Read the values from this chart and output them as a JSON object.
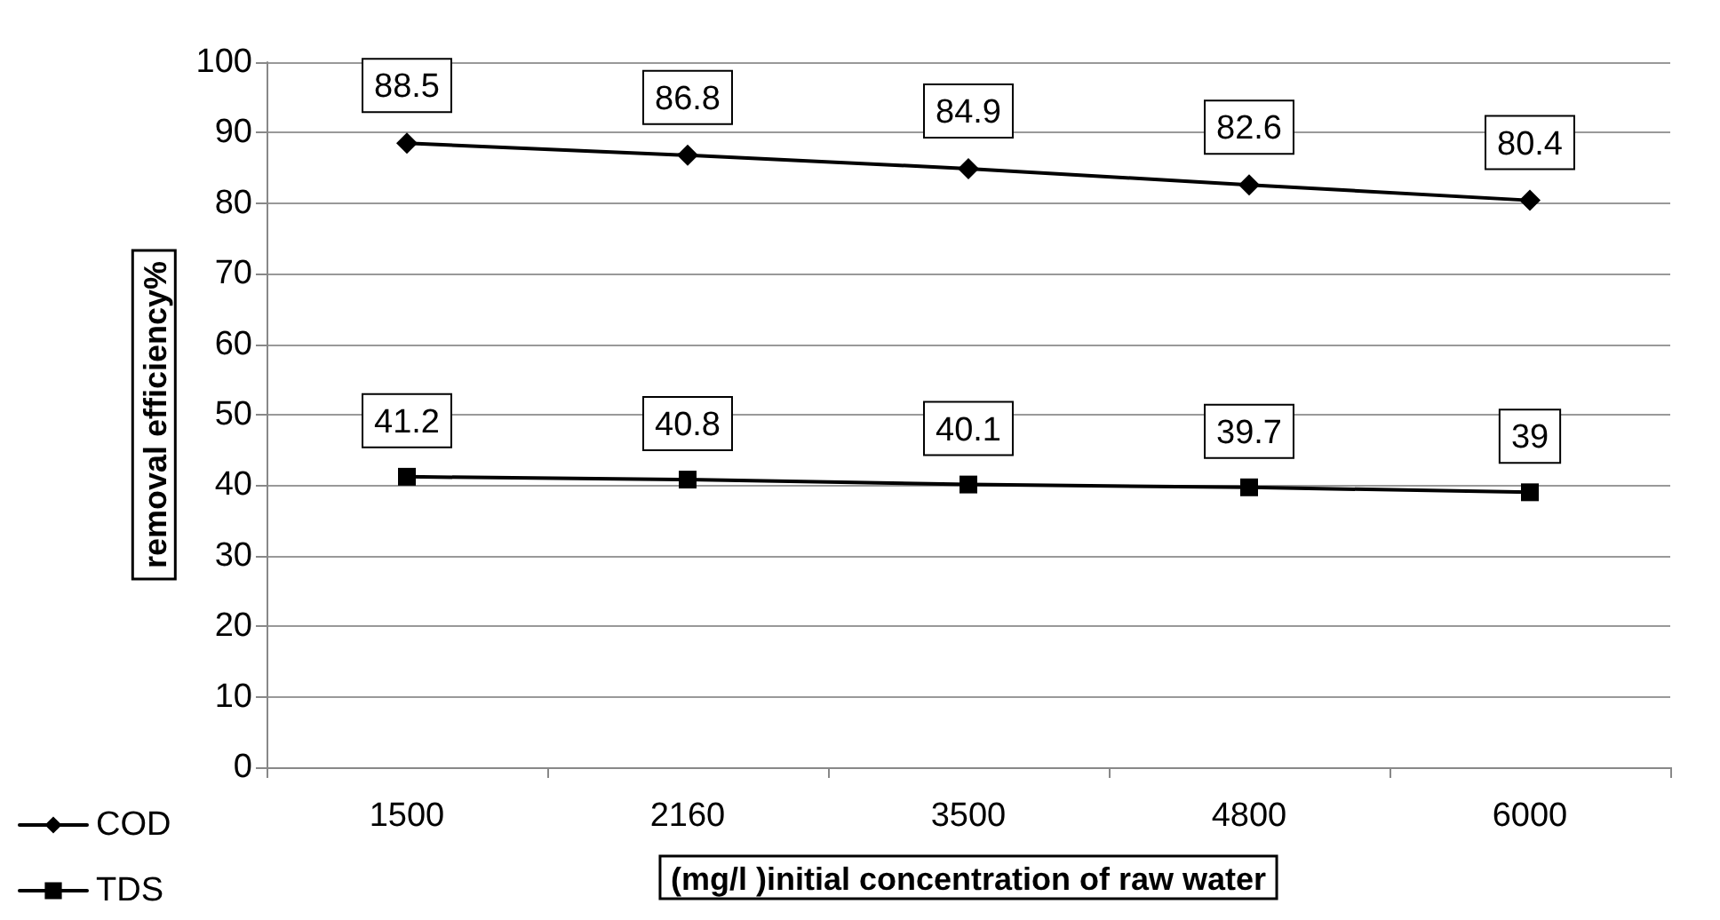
{
  "chart_data": {
    "type": "line",
    "xlabel": "(mg/l )initial concentration of raw water",
    "ylabel": "removal efficiency%",
    "categories": [
      "1500",
      "2160",
      "3500",
      "4800",
      "6000"
    ],
    "series": [
      {
        "name": "COD",
        "color": "#000000",
        "marker": "diamond",
        "values": [
          88.5,
          86.8,
          84.9,
          82.6,
          80.4
        ]
      },
      {
        "name": "TDS",
        "color": "#000000",
        "marker": "square",
        "values": [
          41.2,
          40.8,
          40.1,
          39.7,
          39
        ]
      }
    ],
    "ylim": [
      0,
      100
    ],
    "yticks": [
      0,
      10,
      20,
      30,
      40,
      50,
      60,
      70,
      80,
      90,
      100
    ],
    "grid": "y",
    "legend": "bottom left",
    "data_labels": true,
    "line_style": "solid"
  }
}
